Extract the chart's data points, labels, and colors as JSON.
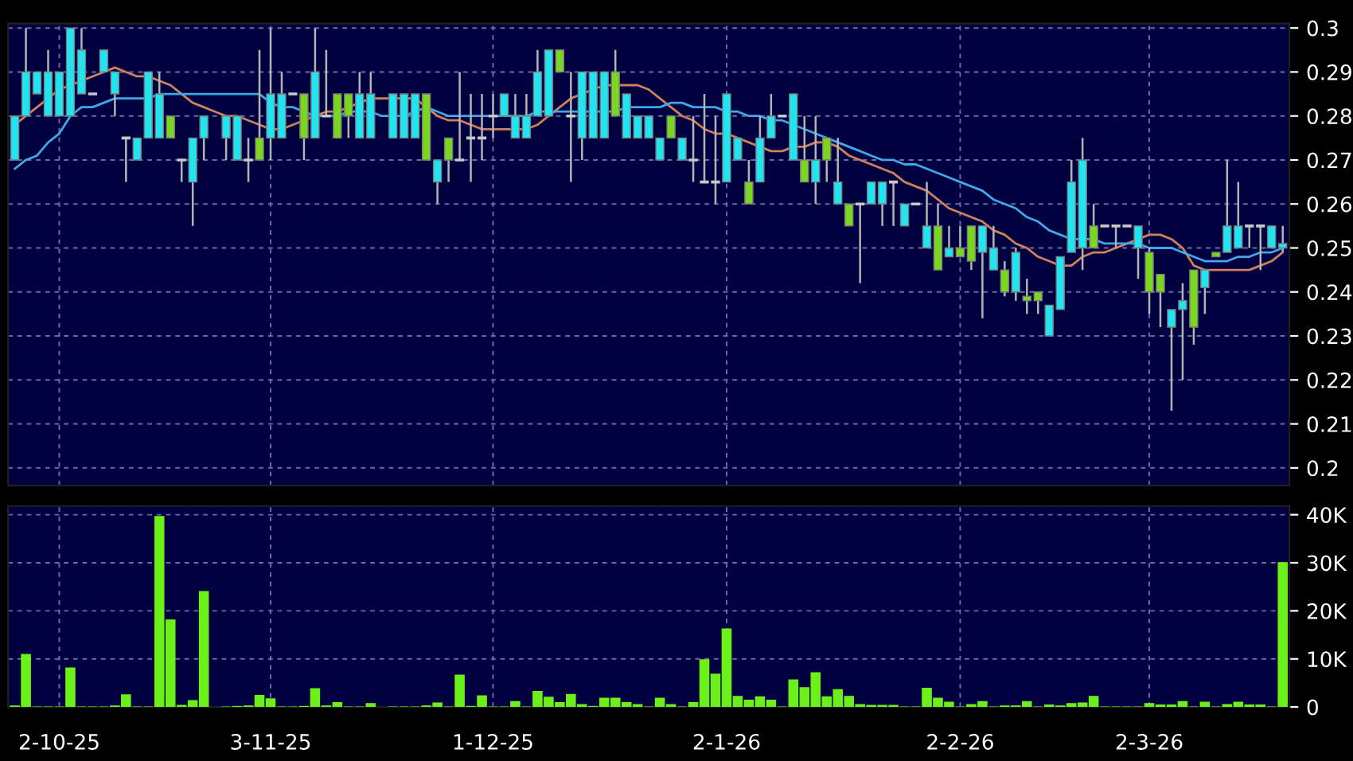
{
  "chart_data": [
    {
      "type": "candlestick",
      "categories": [
        null,
        null,
        null,
        null,
        null,
        null,
        null,
        null,
        null,
        null,
        null,
        null,
        null,
        null,
        null,
        null,
        null,
        null,
        null,
        null,
        null,
        null,
        null,
        null,
        null,
        null,
        null,
        null,
        null,
        null,
        null,
        null,
        null,
        null,
        null,
        null,
        null,
        null,
        null,
        null,
        null,
        null,
        null,
        null,
        null,
        null,
        null,
        null,
        null,
        null,
        null,
        null,
        null,
        null,
        null,
        null,
        null,
        null,
        null,
        null,
        null,
        null,
        null,
        null,
        null,
        null,
        null,
        null,
        null,
        null,
        null,
        null,
        null,
        null,
        null,
        null,
        null,
        null,
        null,
        null,
        null,
        null,
        null,
        null,
        null,
        null,
        null,
        null,
        null,
        null,
        null,
        null,
        null,
        null,
        null,
        null,
        null,
        null,
        null,
        null,
        null,
        null,
        null,
        null,
        null,
        null,
        null,
        null,
        null,
        null,
        null,
        null,
        null,
        null,
        null
      ],
      "ohlc": [
        [
          0.27,
          0.28,
          0.27,
          0.28
        ],
        [
          0.28,
          0.3,
          0.28,
          0.29
        ],
        [
          0.285,
          0.29,
          0.285,
          0.29
        ],
        [
          0.28,
          0.295,
          0.28,
          0.29
        ],
        [
          0.28,
          0.29,
          0.28,
          0.29
        ],
        [
          0.28,
          0.3,
          0.28,
          0.3
        ],
        [
          0.285,
          0.3,
          0.285,
          0.295
        ],
        [
          0.285,
          0.285,
          0.285,
          0.285
        ],
        [
          0.29,
          0.295,
          0.29,
          0.295
        ],
        [
          0.285,
          0.29,
          0.28,
          0.29
        ],
        [
          0.275,
          0.275,
          0.265,
          0.275
        ],
        [
          0.27,
          0.275,
          0.27,
          0.275
        ],
        [
          0.275,
          0.29,
          0.275,
          0.29
        ],
        [
          0.275,
          0.29,
          0.275,
          0.285
        ],
        [
          0.28,
          0.28,
          0.275,
          0.275
        ],
        [
          0.27,
          0.27,
          0.265,
          0.27
        ],
        [
          0.265,
          0.275,
          0.255,
          0.275
        ],
        [
          0.275,
          0.28,
          0.27,
          0.28
        ],
        null,
        [
          0.275,
          0.28,
          0.27,
          0.28
        ],
        [
          0.27,
          0.28,
          0.27,
          0.28
        ],
        [
          0.27,
          0.275,
          0.265,
          0.27
        ],
        [
          0.275,
          0.295,
          0.27,
          0.27
        ],
        [
          0.275,
          0.3,
          0.27,
          0.285
        ],
        [
          0.275,
          0.29,
          0.275,
          0.285
        ],
        [
          0.285,
          0.285,
          0.285,
          0.285
        ],
        [
          0.285,
          0.285,
          0.27,
          0.275
        ],
        [
          0.275,
          0.3,
          0.275,
          0.29
        ],
        [
          0.28,
          0.295,
          0.28,
          0.28
        ],
        [
          0.285,
          0.285,
          0.275,
          0.275
        ],
        [
          0.285,
          0.285,
          0.275,
          0.28
        ],
        [
          0.275,
          0.29,
          0.275,
          0.285
        ],
        [
          0.275,
          0.29,
          0.275,
          0.285
        ],
        null,
        [
          0.275,
          0.285,
          0.275,
          0.285
        ],
        [
          0.275,
          0.285,
          0.275,
          0.285
        ],
        [
          0.275,
          0.285,
          0.275,
          0.285
        ],
        [
          0.285,
          0.285,
          0.27,
          0.27
        ],
        [
          0.265,
          0.27,
          0.26,
          0.27
        ],
        [
          0.275,
          0.275,
          0.265,
          0.27
        ],
        [
          0.27,
          0.29,
          0.27,
          0.27
        ],
        [
          0.275,
          0.285,
          0.265,
          0.275
        ],
        [
          0.275,
          0.285,
          0.27,
          0.275
        ],
        [
          0.28,
          0.285,
          0.275,
          0.28
        ],
        [
          0.28,
          0.285,
          0.28,
          0.285
        ],
        [
          0.275,
          0.285,
          0.275,
          0.28
        ],
        [
          0.275,
          0.285,
          0.275,
          0.28
        ],
        [
          0.28,
          0.295,
          0.28,
          0.29
        ],
        [
          0.28,
          0.295,
          0.28,
          0.295
        ],
        [
          0.295,
          0.295,
          0.29,
          0.29
        ],
        [
          0.28,
          0.29,
          0.265,
          0.28
        ],
        [
          0.275,
          0.29,
          0.27,
          0.29
        ],
        [
          0.275,
          0.29,
          0.275,
          0.29
        ],
        [
          0.275,
          0.29,
          0.275,
          0.29
        ],
        [
          0.29,
          0.295,
          0.28,
          0.28
        ],
        [
          0.275,
          0.285,
          0.275,
          0.285
        ],
        [
          0.275,
          0.28,
          0.275,
          0.28
        ],
        [
          0.275,
          0.28,
          0.275,
          0.28
        ],
        [
          0.27,
          0.275,
          0.27,
          0.275
        ],
        [
          0.28,
          0.28,
          0.275,
          0.275
        ],
        [
          0.27,
          0.275,
          0.27,
          0.275
        ],
        [
          0.27,
          0.28,
          0.265,
          0.27
        ],
        [
          0.265,
          0.285,
          0.265,
          0.265
        ],
        [
          0.265,
          0.28,
          0.26,
          0.265
        ],
        [
          0.265,
          0.285,
          0.265,
          0.285
        ],
        [
          0.27,
          0.275,
          0.27,
          0.275
        ],
        [
          0.265,
          0.27,
          0.26,
          0.26
        ],
        [
          0.265,
          0.28,
          0.265,
          0.275
        ],
        [
          0.275,
          0.285,
          0.275,
          0.28
        ],
        [
          0.28,
          0.28,
          0.28,
          0.28
        ],
        [
          0.27,
          0.285,
          0.27,
          0.285
        ],
        [
          0.27,
          0.28,
          0.265,
          0.265
        ],
        [
          0.265,
          0.28,
          0.26,
          0.27
        ],
        [
          0.275,
          0.275,
          0.265,
          0.27
        ],
        [
          0.26,
          0.275,
          0.26,
          0.265
        ],
        [
          0.26,
          0.26,
          0.255,
          0.255
        ],
        [
          0.26,
          0.26,
          0.242,
          0.26
        ],
        [
          0.26,
          0.265,
          0.26,
          0.265
        ],
        [
          0.26,
          0.265,
          0.255,
          0.265
        ],
        [
          0.265,
          0.265,
          0.255,
          0.265
        ],
        [
          0.255,
          0.26,
          0.255,
          0.26
        ],
        [
          0.26,
          0.26,
          0.26,
          0.26
        ],
        [
          0.25,
          0.265,
          0.25,
          0.255
        ],
        [
          0.255,
          0.26,
          0.245,
          0.245
        ],
        [
          0.248,
          0.255,
          0.248,
          0.25
        ],
        [
          0.25,
          0.255,
          0.248,
          0.248
        ],
        [
          0.255,
          0.255,
          0.245,
          0.247
        ],
        [
          0.249,
          0.255,
          0.234,
          0.255
        ],
        [
          0.245,
          0.255,
          0.245,
          0.25
        ],
        [
          0.245,
          0.247,
          0.239,
          0.24
        ],
        [
          0.24,
          0.25,
          0.238,
          0.249
        ],
        [
          0.239,
          0.243,
          0.235,
          0.238
        ],
        [
          0.24,
          0.24,
          0.235,
          0.238
        ],
        [
          0.23,
          0.237,
          0.23,
          0.237
        ],
        [
          0.236,
          0.248,
          0.236,
          0.248
        ],
        [
          0.249,
          0.27,
          0.249,
          0.265
        ],
        [
          0.25,
          0.275,
          0.245,
          0.27
        ],
        [
          0.255,
          0.26,
          0.25,
          0.25
        ],
        [
          0.255,
          0.255,
          0.255,
          0.255
        ],
        [
          0.255,
          0.255,
          0.25,
          0.255
        ],
        [
          0.255,
          0.255,
          0.255,
          0.255
        ],
        [
          0.25,
          0.255,
          0.243,
          0.255
        ],
        [
          0.249,
          0.25,
          0.235,
          0.24
        ],
        [
          0.244,
          0.244,
          0.232,
          0.24
        ],
        [
          0.232,
          0.236,
          0.213,
          0.236
        ],
        [
          0.236,
          0.242,
          0.22,
          0.238
        ],
        [
          0.245,
          0.245,
          0.228,
          0.232
        ],
        [
          0.241,
          0.245,
          0.235,
          0.245
        ],
        [
          0.249,
          0.249,
          0.248,
          0.248
        ],
        [
          0.249,
          0.27,
          0.249,
          0.255
        ],
        [
          0.25,
          0.265,
          0.25,
          0.255
        ],
        [
          0.255,
          0.255,
          0.25,
          0.255
        ],
        [
          0.255,
          0.255,
          0.245,
          0.255
        ],
        [
          0.25,
          0.255,
          0.25,
          0.255
        ],
        [
          0.25,
          0.255,
          0.249,
          0.251
        ]
      ],
      "colors": [
        "#22e4f0",
        "#22e4f0",
        "#22e4f0",
        "#22e4f0",
        "#22e4f0",
        "#22e4f0",
        "#22e4f0",
        "#c8c8c8",
        "#22e4f0",
        "#22e4f0",
        "#c8c8c8",
        "#22e4f0",
        "#22e4f0",
        "#22e4f0",
        "#7ad61e",
        "#c8c8c8",
        "#22e4f0",
        "#22e4f0",
        null,
        "#22e4f0",
        "#22e4f0",
        "#c8c8c8",
        "#7ad61e",
        "#22e4f0",
        "#22e4f0",
        "#c8c8c8",
        "#7ad61e",
        "#22e4f0",
        "#c8c8c8",
        "#7ad61e",
        "#7ad61e",
        "#22e4f0",
        "#22e4f0",
        null,
        "#22e4f0",
        "#22e4f0",
        "#22e4f0",
        "#7ad61e",
        "#22e4f0",
        "#7ad61e",
        "#c8c8c8",
        "#c8c8c8",
        "#c8c8c8",
        "#c8c8c8",
        "#22e4f0",
        "#22e4f0",
        "#22e4f0",
        "#22e4f0",
        "#22e4f0",
        "#7ad61e",
        "#c8c8c8",
        "#22e4f0",
        "#22e4f0",
        "#22e4f0",
        "#7ad61e",
        "#22e4f0",
        "#22e4f0",
        "#22e4f0",
        "#22e4f0",
        "#7ad61e",
        "#22e4f0",
        "#c8c8c8",
        "#c8c8c8",
        "#c8c8c8",
        "#22e4f0",
        "#22e4f0",
        "#7ad61e",
        "#22e4f0",
        "#22e4f0",
        "#c8c8c8",
        "#22e4f0",
        "#7ad61e",
        "#22e4f0",
        "#7ad61e",
        "#22e4f0",
        "#7ad61e",
        "#c8c8c8",
        "#22e4f0",
        "#22e4f0",
        "#c8c8c8",
        "#22e4f0",
        "#c8c8c8",
        "#22e4f0",
        "#7ad61e",
        "#22e4f0",
        "#7ad61e",
        "#7ad61e",
        "#22e4f0",
        "#22e4f0",
        "#7ad61e",
        "#22e4f0",
        "#7ad61e",
        "#7ad61e",
        "#22e4f0",
        "#22e4f0",
        "#22e4f0",
        "#22e4f0",
        "#7ad61e",
        "#c8c8c8",
        "#c8c8c8",
        "#c8c8c8",
        "#22e4f0",
        "#7ad61e",
        "#7ad61e",
        "#22e4f0",
        "#22e4f0",
        "#7ad61e",
        "#22e4f0",
        "#7ad61e",
        "#22e4f0",
        "#22e4f0",
        "#c8c8c8",
        "#c8c8c8",
        "#22e4f0",
        "#22e4f0"
      ],
      "series": [
        {
          "type": "line",
          "color": "#d0805a",
          "values": [
            0.278,
            0.28,
            0.282,
            0.284,
            0.286,
            0.287,
            0.288,
            0.289,
            0.29,
            0.291,
            0.29,
            0.289,
            0.289,
            0.288,
            0.287,
            0.285,
            0.283,
            0.282,
            0.281,
            0.28,
            0.28,
            0.279,
            0.278,
            0.277,
            0.277,
            0.278,
            0.279,
            0.28,
            0.281,
            0.281,
            0.282,
            0.283,
            0.284,
            0.284,
            0.284,
            0.284,
            0.284,
            0.282,
            0.28,
            0.279,
            0.279,
            0.278,
            0.277,
            0.277,
            0.277,
            0.277,
            0.277,
            0.278,
            0.28,
            0.282,
            0.284,
            0.285,
            0.286,
            0.287,
            0.287,
            0.287,
            0.287,
            0.286,
            0.284,
            0.282,
            0.28,
            0.279,
            0.277,
            0.276,
            0.276,
            0.275,
            0.274,
            0.273,
            0.272,
            0.272,
            0.273,
            0.273,
            0.274,
            0.274,
            0.273,
            0.271,
            0.27,
            0.269,
            0.268,
            0.267,
            0.265,
            0.264,
            0.263,
            0.261,
            0.259,
            0.258,
            0.257,
            0.256,
            0.254,
            0.253,
            0.251,
            0.25,
            0.248,
            0.247,
            0.246,
            0.246,
            0.248,
            0.249,
            0.249,
            0.25,
            0.251,
            0.252,
            0.253,
            0.253,
            0.252,
            0.25,
            0.246,
            0.245,
            0.245,
            0.245,
            0.245,
            0.245,
            0.246,
            0.247,
            0.249
          ]
        },
        {
          "type": "line",
          "color": "#3fa8e8",
          "values": [
            0.268,
            0.27,
            0.271,
            0.274,
            0.276,
            0.28,
            0.282,
            0.282,
            0.283,
            0.284,
            0.284,
            0.284,
            0.284,
            0.285,
            0.285,
            0.285,
            0.285,
            0.285,
            0.285,
            0.285,
            0.285,
            0.285,
            0.285,
            0.283,
            0.282,
            0.282,
            0.281,
            0.28,
            0.28,
            0.28,
            0.281,
            0.281,
            0.281,
            0.28,
            0.28,
            0.28,
            0.281,
            0.282,
            0.281,
            0.28,
            0.28,
            0.28,
            0.28,
            0.28,
            0.28,
            0.28,
            0.28,
            0.281,
            0.281,
            0.281,
            0.281,
            0.281,
            0.281,
            0.281,
            0.281,
            0.282,
            0.282,
            0.282,
            0.282,
            0.283,
            0.283,
            0.282,
            0.282,
            0.282,
            0.281,
            0.281,
            0.28,
            0.28,
            0.279,
            0.279,
            0.278,
            0.277,
            0.276,
            0.275,
            0.274,
            0.273,
            0.272,
            0.271,
            0.27,
            0.27,
            0.269,
            0.269,
            0.268,
            0.267,
            0.266,
            0.265,
            0.264,
            0.263,
            0.261,
            0.26,
            0.259,
            0.257,
            0.256,
            0.254,
            0.253,
            0.252,
            0.252,
            0.252,
            0.251,
            0.251,
            0.251,
            0.251,
            0.25,
            0.25,
            0.25,
            0.249,
            0.248,
            0.247,
            0.247,
            0.247,
            0.248,
            0.248,
            0.249,
            0.249,
            0.25
          ]
        }
      ],
      "ylim": [
        0.196,
        0.301
      ],
      "yticks": [
        0.2,
        0.21,
        0.22,
        0.23,
        0.24,
        0.25,
        0.26,
        0.27,
        0.28,
        0.29,
        0.3
      ],
      "grid": true,
      "tick_labels": "y"
    },
    {
      "type": "bar",
      "categories": [
        null,
        null,
        null,
        null,
        "2-10-25",
        null,
        null,
        null,
        null,
        null,
        null,
        null,
        null,
        null,
        null,
        null,
        null,
        null,
        null,
        null,
        null,
        null,
        null,
        "3-11-25",
        null,
        null,
        null,
        null,
        null,
        null,
        null,
        null,
        null,
        null,
        null,
        null,
        null,
        null,
        null,
        null,
        null,
        null,
        null,
        "1-12-25",
        null,
        null,
        null,
        null,
        null,
        null,
        null,
        null,
        null,
        null,
        null,
        null,
        null,
        null,
        null,
        null,
        null,
        null,
        null,
        null,
        "2-1-26",
        null,
        null,
        null,
        null,
        null,
        null,
        null,
        null,
        null,
        null,
        null,
        null,
        null,
        null,
        null,
        null,
        null,
        null,
        null,
        null,
        "2-2-26",
        null,
        null,
        null,
        null,
        null,
        null,
        null,
        null,
        null,
        null,
        null,
        null,
        null,
        null,
        null,
        null,
        "2-3-26",
        null,
        null,
        null,
        null,
        null,
        null,
        null,
        null,
        null,
        null,
        null,
        null
      ],
      "values": [
        0.2,
        10.9,
        0,
        0,
        0,
        8.1,
        0,
        0,
        0,
        0.2,
        2.5,
        0,
        0,
        39.6,
        18.1,
        0.3,
        1.3,
        24,
        null,
        0,
        0.1,
        0.2,
        2.4,
        1.7,
        0,
        0,
        0.1,
        3.8,
        0.2,
        0.9,
        0,
        0,
        0.7,
        null,
        0,
        0,
        0,
        0.2,
        0.8,
        0,
        6.6,
        0.1,
        2.3,
        0,
        0,
        1.1,
        0,
        3.2,
        2.0,
        0.9,
        2.6,
        0.5,
        0.1,
        1.8,
        1.8,
        0.9,
        0.5,
        0,
        1.8,
        0.5,
        0,
        0.9,
        9.8,
        6.8,
        16.2,
        2.2,
        1.4,
        2.1,
        1.4,
        0,
        5.6,
        4.0,
        7.1,
        2.1,
        3.6,
        2.2,
        0.5,
        0.3,
        0.3,
        0.3,
        0,
        0,
        3.9,
        1.8,
        1.0,
        0,
        0.5,
        1.1,
        0,
        0.2,
        0.2,
        1.1,
        0,
        0.4,
        0.2,
        0.7,
        0.8,
        2.2,
        0,
        0,
        0,
        0,
        0.7,
        0.4,
        0.4,
        1.1,
        0,
        1.0,
        0,
        0.5,
        1.0,
        0.4,
        0.4,
        0,
        30
      ],
      "color": "#6cf019",
      "ylim": [
        0,
        41.8
      ],
      "yticks": [
        0,
        {
          "value": 10,
          "label": "10K"
        },
        {
          "value": 20,
          "label": "20K"
        },
        {
          "value": 30,
          "label": "30K"
        },
        {
          "value": 40,
          "label": "40K"
        }
      ],
      "grid": true
    }
  ]
}
